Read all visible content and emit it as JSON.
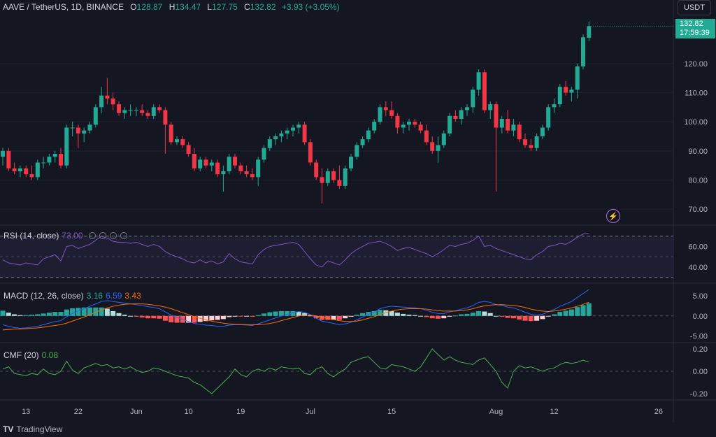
{
  "header": {
    "symbol": "AAVE / TetherUS, 1D, BINANCE",
    "o_label": "O",
    "o_value": "128.87",
    "h_label": "H",
    "h_value": "134.47",
    "l_label": "L",
    "l_value": "127.75",
    "c_label": "C",
    "c_value": "132.82",
    "change": "+3.93 (+3.05%)"
  },
  "currency_button": "USDT",
  "last_price": {
    "price": "132.82",
    "countdown": "17:59:39"
  },
  "alert_icon": "lightning-icon",
  "price_axis": [
    "120.00",
    "110.00",
    "100.00",
    "90.00",
    "80.00",
    "70.00"
  ],
  "rsi": {
    "label": "RSI (14, close)",
    "value": "73.00",
    "axis": [
      "60.00",
      "40.00"
    ],
    "upper_band": 70,
    "lower_band": 30,
    "middle_band": 50
  },
  "macd": {
    "label": "MACD (12, 26, close)",
    "hist": "3.16",
    "macd": "6.59",
    "signal": "3.43",
    "axis": [
      "5.00",
      "0.00",
      "-5.00"
    ]
  },
  "cmf": {
    "label": "CMF (20)",
    "value": "0.08",
    "axis": [
      "0.20",
      "0.00",
      "-0.20"
    ]
  },
  "time_axis": [
    "13",
    "22",
    "Jun",
    "10",
    "19",
    "Jul",
    "15",
    "Aug",
    "12",
    "26"
  ],
  "branding": "TradingView",
  "colors": {
    "up": "#22ab94",
    "down": "#f23645",
    "rsi": "#7e57c2",
    "macd": "#2962ff",
    "signal": "#ff6d00",
    "cmf": "#4caf50",
    "background": "#141722"
  },
  "chart_data": {
    "type": "candlestick",
    "title": "AAVE / TetherUS, 1D, BINANCE",
    "ylim": [
      65,
      137
    ],
    "candles": [
      {
        "o": 88,
        "h": 91,
        "l": 85,
        "c": 90
      },
      {
        "o": 90,
        "h": 91,
        "l": 83,
        "c": 84
      },
      {
        "o": 84,
        "h": 86,
        "l": 82,
        "c": 83
      },
      {
        "o": 83,
        "h": 85,
        "l": 81,
        "c": 84
      },
      {
        "o": 84,
        "h": 85,
        "l": 81,
        "c": 82
      },
      {
        "o": 82,
        "h": 85,
        "l": 80,
        "c": 81
      },
      {
        "o": 81,
        "h": 87,
        "l": 80,
        "c": 86
      },
      {
        "o": 86,
        "h": 88,
        "l": 84,
        "c": 86
      },
      {
        "o": 86,
        "h": 89,
        "l": 85,
        "c": 88
      },
      {
        "o": 88,
        "h": 90,
        "l": 86,
        "c": 89
      },
      {
        "o": 89,
        "h": 91,
        "l": 84,
        "c": 85
      },
      {
        "o": 85,
        "h": 99,
        "l": 84,
        "c": 98
      },
      {
        "o": 98,
        "h": 100,
        "l": 95,
        "c": 98
      },
      {
        "o": 98,
        "h": 99,
        "l": 91,
        "c": 96
      },
      {
        "o": 96,
        "h": 98,
        "l": 93,
        "c": 97
      },
      {
        "o": 97,
        "h": 100,
        "l": 96,
        "c": 99
      },
      {
        "o": 99,
        "h": 106,
        "l": 98,
        "c": 105
      },
      {
        "o": 105,
        "h": 112,
        "l": 103,
        "c": 109
      },
      {
        "o": 109,
        "h": 115,
        "l": 106,
        "c": 108
      },
      {
        "o": 108,
        "h": 110,
        "l": 104,
        "c": 106
      },
      {
        "o": 106,
        "h": 107,
        "l": 102,
        "c": 103
      },
      {
        "o": 103,
        "h": 105,
        "l": 101,
        "c": 104
      },
      {
        "o": 104,
        "h": 106,
        "l": 102,
        "c": 104
      },
      {
        "o": 104,
        "h": 105,
        "l": 102,
        "c": 104
      },
      {
        "o": 104,
        "h": 106,
        "l": 102,
        "c": 103
      },
      {
        "o": 103,
        "h": 104,
        "l": 101,
        "c": 102
      },
      {
        "o": 102,
        "h": 106,
        "l": 101,
        "c": 105
      },
      {
        "o": 105,
        "h": 106,
        "l": 103,
        "c": 104
      },
      {
        "o": 104,
        "h": 105,
        "l": 89,
        "c": 99
      },
      {
        "o": 99,
        "h": 100,
        "l": 92,
        "c": 93
      },
      {
        "o": 93,
        "h": 95,
        "l": 92,
        "c": 94
      },
      {
        "o": 94,
        "h": 95,
        "l": 91,
        "c": 92
      },
      {
        "o": 92,
        "h": 93,
        "l": 88,
        "c": 89
      },
      {
        "o": 89,
        "h": 91,
        "l": 83,
        "c": 84
      },
      {
        "o": 84,
        "h": 88,
        "l": 83,
        "c": 87
      },
      {
        "o": 87,
        "h": 88,
        "l": 84,
        "c": 85
      },
      {
        "o": 85,
        "h": 87,
        "l": 83,
        "c": 86
      },
      {
        "o": 86,
        "h": 87,
        "l": 81,
        "c": 82
      },
      {
        "o": 82,
        "h": 85,
        "l": 76,
        "c": 83
      },
      {
        "o": 83,
        "h": 89,
        "l": 82,
        "c": 88
      },
      {
        "o": 88,
        "h": 89,
        "l": 84,
        "c": 85
      },
      {
        "o": 85,
        "h": 86,
        "l": 82,
        "c": 83
      },
      {
        "o": 83,
        "h": 85,
        "l": 81,
        "c": 82
      },
      {
        "o": 82,
        "h": 84,
        "l": 80,
        "c": 81
      },
      {
        "o": 81,
        "h": 88,
        "l": 78,
        "c": 87
      },
      {
        "o": 87,
        "h": 92,
        "l": 86,
        "c": 91
      },
      {
        "o": 91,
        "h": 95,
        "l": 90,
        "c": 94
      },
      {
        "o": 94,
        "h": 96,
        "l": 92,
        "c": 95
      },
      {
        "o": 95,
        "h": 97,
        "l": 93,
        "c": 96
      },
      {
        "o": 96,
        "h": 98,
        "l": 94,
        "c": 97
      },
      {
        "o": 97,
        "h": 99,
        "l": 95,
        "c": 98
      },
      {
        "o": 98,
        "h": 100,
        "l": 96,
        "c": 99
      },
      {
        "o": 99,
        "h": 100,
        "l": 92,
        "c": 93
      },
      {
        "o": 93,
        "h": 94,
        "l": 85,
        "c": 86
      },
      {
        "o": 86,
        "h": 87,
        "l": 80,
        "c": 81
      },
      {
        "o": 81,
        "h": 84,
        "l": 72,
        "c": 79
      },
      {
        "o": 79,
        "h": 84,
        "l": 78,
        "c": 83
      },
      {
        "o": 83,
        "h": 84,
        "l": 79,
        "c": 80
      },
      {
        "o": 80,
        "h": 85,
        "l": 77,
        "c": 78
      },
      {
        "o": 78,
        "h": 85,
        "l": 77,
        "c": 84
      },
      {
        "o": 84,
        "h": 89,
        "l": 83,
        "c": 88
      },
      {
        "o": 88,
        "h": 93,
        "l": 87,
        "c": 92
      },
      {
        "o": 92,
        "h": 95,
        "l": 91,
        "c": 94
      },
      {
        "o": 94,
        "h": 98,
        "l": 93,
        "c": 97
      },
      {
        "o": 97,
        "h": 101,
        "l": 96,
        "c": 100
      },
      {
        "o": 100,
        "h": 106,
        "l": 99,
        "c": 105
      },
      {
        "o": 105,
        "h": 107,
        "l": 102,
        "c": 104
      },
      {
        "o": 104,
        "h": 107,
        "l": 101,
        "c": 102
      },
      {
        "o": 102,
        "h": 103,
        "l": 96,
        "c": 98
      },
      {
        "o": 98,
        "h": 100,
        "l": 96,
        "c": 99
      },
      {
        "o": 99,
        "h": 101,
        "l": 97,
        "c": 100
      },
      {
        "o": 100,
        "h": 101,
        "l": 98,
        "c": 99
      },
      {
        "o": 99,
        "h": 100,
        "l": 96,
        "c": 97
      },
      {
        "o": 97,
        "h": 99,
        "l": 92,
        "c": 93
      },
      {
        "o": 93,
        "h": 95,
        "l": 89,
        "c": 90
      },
      {
        "o": 90,
        "h": 95,
        "l": 86,
        "c": 92
      },
      {
        "o": 92,
        "h": 97,
        "l": 91,
        "c": 96
      },
      {
        "o": 96,
        "h": 103,
        "l": 95,
        "c": 102
      },
      {
        "o": 102,
        "h": 104,
        "l": 100,
        "c": 101
      },
      {
        "o": 101,
        "h": 105,
        "l": 99,
        "c": 104
      },
      {
        "o": 104,
        "h": 106,
        "l": 102,
        "c": 105
      },
      {
        "o": 105,
        "h": 112,
        "l": 103,
        "c": 111
      },
      {
        "o": 111,
        "h": 118,
        "l": 109,
        "c": 117
      },
      {
        "o": 117,
        "h": 118,
        "l": 103,
        "c": 104
      },
      {
        "o": 104,
        "h": 107,
        "l": 101,
        "c": 106
      },
      {
        "o": 106,
        "h": 107,
        "l": 76,
        "c": 98
      },
      {
        "o": 98,
        "h": 102,
        "l": 96,
        "c": 101
      },
      {
        "o": 101,
        "h": 104,
        "l": 96,
        "c": 97
      },
      {
        "o": 97,
        "h": 101,
        "l": 95,
        "c": 99
      },
      {
        "o": 99,
        "h": 100,
        "l": 93,
        "c": 94
      },
      {
        "o": 94,
        "h": 96,
        "l": 91,
        "c": 92
      },
      {
        "o": 92,
        "h": 94,
        "l": 90,
        "c": 91
      },
      {
        "o": 91,
        "h": 96,
        "l": 90,
        "c": 95
      },
      {
        "o": 95,
        "h": 99,
        "l": 94,
        "c": 98
      },
      {
        "o": 98,
        "h": 106,
        "l": 97,
        "c": 105
      },
      {
        "o": 105,
        "h": 108,
        "l": 103,
        "c": 106
      },
      {
        "o": 106,
        "h": 113,
        "l": 105,
        "c": 112
      },
      {
        "o": 112,
        "h": 114,
        "l": 109,
        "c": 110
      },
      {
        "o": 110,
        "h": 112,
        "l": 107,
        "c": 111
      },
      {
        "o": 111,
        "h": 120,
        "l": 108,
        "c": 119
      },
      {
        "o": 119,
        "h": 130,
        "l": 118,
        "c": 129
      },
      {
        "o": 128.87,
        "h": 134.47,
        "l": 127.75,
        "c": 132.82
      }
    ],
    "rsi_values": [
      47,
      44,
      43,
      42,
      44,
      43,
      42,
      48,
      50,
      52,
      46,
      60,
      61,
      58,
      60,
      62,
      66,
      70,
      68,
      65,
      64,
      64,
      63,
      64,
      62,
      60,
      62,
      60,
      55,
      52,
      50,
      48,
      45,
      44,
      47,
      44,
      46,
      43,
      45,
      53,
      48,
      45,
      44,
      43,
      52,
      57,
      60,
      61,
      62,
      63,
      64,
      62,
      55,
      48,
      42,
      40,
      46,
      44,
      42,
      47,
      53,
      57,
      60,
      63,
      64,
      65,
      63,
      60,
      56,
      58,
      59,
      57,
      55,
      53,
      50,
      53,
      57,
      61,
      60,
      62,
      63,
      66,
      70,
      60,
      61,
      58,
      56,
      54,
      52,
      50,
      48,
      47,
      52,
      55,
      60,
      61,
      63,
      62,
      65,
      69,
      72,
      73
    ],
    "rsi_ylim": [
      25,
      80
    ],
    "macd_line": [
      -2.2,
      -2.6,
      -2.9,
      -3.1,
      -3.0,
      -2.8,
      -2.6,
      -2.2,
      -1.8,
      -1.4,
      -1.2,
      -0.2,
      0.6,
      1.2,
      1.8,
      2.4,
      3.0,
      3.6,
      3.8,
      3.6,
      3.4,
      3.2,
      3.0,
      2.8,
      2.6,
      2.3,
      2.1,
      1.8,
      1.0,
      0.2,
      -0.4,
      -0.9,
      -1.4,
      -1.9,
      -2.1,
      -2.3,
      -2.4,
      -2.6,
      -2.6,
      -2.3,
      -2.2,
      -2.2,
      -2.3,
      -2.4,
      -2.0,
      -1.5,
      -1.0,
      -0.5,
      0.0,
      0.4,
      0.8,
      1.1,
      0.9,
      0.3,
      -0.6,
      -1.3,
      -1.6,
      -1.9,
      -2.2,
      -2.0,
      -1.6,
      -1.0,
      -0.3,
      0.4,
      1.0,
      1.8,
      2.2,
      2.4,
      2.3,
      2.2,
      2.1,
      2.0,
      1.8,
      1.4,
      0.9,
      0.6,
      0.6,
      1.0,
      1.3,
      1.7,
      2.0,
      2.6,
      3.4,
      3.6,
      3.4,
      2.8,
      2.6,
      2.2,
      2.0,
      1.5,
      0.9,
      0.4,
      0.2,
      0.4,
      1.0,
      1.6,
      2.4,
      3.0,
      3.6,
      4.6,
      5.6,
      6.59
    ],
    "signal_line": [
      -3.5,
      -3.4,
      -3.3,
      -3.3,
      -3.2,
      -3.1,
      -3.0,
      -2.8,
      -2.6,
      -2.4,
      -2.2,
      -1.8,
      -1.3,
      -0.8,
      -0.3,
      0.3,
      0.9,
      1.5,
      2.0,
      2.4,
      2.7,
      2.9,
      3.0,
      3.0,
      3.0,
      2.9,
      2.7,
      2.5,
      2.2,
      1.8,
      1.3,
      0.8,
      0.3,
      -0.2,
      -0.6,
      -1.0,
      -1.3,
      -1.6,
      -1.8,
      -2.0,
      -2.1,
      -2.1,
      -2.2,
      -2.2,
      -2.2,
      -2.1,
      -1.9,
      -1.6,
      -1.2,
      -0.8,
      -0.4,
      0.0,
      0.2,
      0.2,
      0.0,
      -0.3,
      -0.6,
      -0.9,
      -1.2,
      -1.4,
      -1.4,
      -1.3,
      -1.0,
      -0.6,
      -0.2,
      0.3,
      0.8,
      1.2,
      1.5,
      1.7,
      1.8,
      1.8,
      1.8,
      1.7,
      1.5,
      1.3,
      1.2,
      1.2,
      1.2,
      1.3,
      1.5,
      1.8,
      2.2,
      2.5,
      2.7,
      2.8,
      2.8,
      2.7,
      2.6,
      2.4,
      2.1,
      1.7,
      1.4,
      1.2,
      1.1,
      1.2,
      1.4,
      1.7,
      2.0,
      2.4,
      2.9,
      3.43
    ],
    "macd_ylim": [
      -6.5,
      8
    ],
    "cmf_values": [
      0.02,
      0.04,
      -0.02,
      -0.03,
      -0.04,
      -0.02,
      -0.03,
      0.02,
      -0.02,
      -0.03,
      0.0,
      0.09,
      0.01,
      -0.02,
      0.03,
      0.05,
      0.07,
      0.05,
      0.06,
      0.03,
      0.04,
      0.02,
      0.04,
      0.01,
      -0.01,
      0.0,
      0.03,
      0.02,
      0.0,
      -0.02,
      -0.04,
      -0.05,
      -0.06,
      -0.1,
      -0.12,
      -0.16,
      -0.2,
      -0.15,
      -0.1,
      -0.05,
      0.02,
      -0.03,
      -0.05,
      0.0,
      0.02,
      0.0,
      0.03,
      0.01,
      0.04,
      0.03,
      0.02,
      0.03,
      -0.02,
      -0.03,
      0.02,
      0.04,
      -0.02,
      -0.05,
      -0.01,
      0.02,
      0.08,
      0.1,
      0.12,
      0.13,
      0.08,
      0.03,
      0.02,
      0.06,
      0.05,
      0.04,
      0.02,
      0.0,
      0.04,
      0.12,
      0.2,
      0.15,
      0.1,
      0.13,
      0.1,
      0.08,
      0.07,
      0.06,
      0.1,
      0.12,
      0.06,
      0.0,
      -0.1,
      -0.15,
      0.0,
      0.05,
      0.03,
      0.04,
      0.02,
      0.0,
      0.02,
      0.03,
      0.06,
      0.08,
      0.07,
      0.08,
      0.1,
      0.08
    ],
    "cmf_ylim": [
      -0.25,
      0.25
    ]
  }
}
